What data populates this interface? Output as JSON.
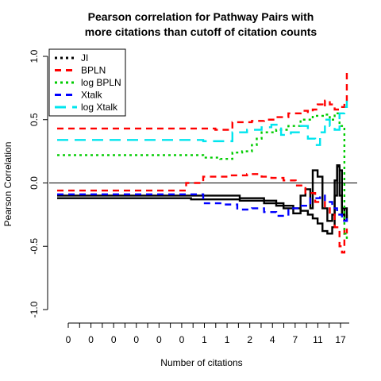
{
  "chart_data": {
    "type": "line",
    "title": [
      "Pearson correlation for Pathway Pairs with",
      "more citations than cutoff of citation counts"
    ],
    "xlabel": "Number of citations",
    "ylabel": "Pearson Correlation",
    "xlim": [
      0,
      120
    ],
    "ylim": [
      -1.0,
      1.0
    ],
    "x_tick_labels": [
      "0",
      "0",
      "0",
      "0",
      "0",
      "0",
      "1",
      "1",
      "2",
      "4",
      "7",
      "11",
      "17"
    ],
    "y_tick_labels": [
      "-1.0",
      "-0.5",
      "0.0",
      "0.5",
      "1.0"
    ],
    "y_tick_values": [
      -1.0,
      -0.5,
      0.0,
      0.5,
      1.0
    ],
    "reference_line": 0.0,
    "legend_position": "top-left",
    "series": [
      {
        "name": "JI",
        "color": "#000000",
        "dash": "dotted",
        "lines": [
          [
            [
              0,
              -0.1
            ],
            [
              50,
              -0.1
            ],
            [
              55,
              -0.1
            ],
            [
              65,
              -0.1
            ],
            [
              75,
              -0.12
            ],
            [
              85,
              -0.14
            ],
            [
              90,
              -0.16
            ],
            [
              93,
              -0.18
            ],
            [
              97,
              -0.2
            ],
            [
              100,
              -0.22
            ],
            [
              103,
              -0.25
            ],
            [
              105,
              -0.28
            ],
            [
              107,
              -0.32
            ],
            [
              109,
              -0.38
            ],
            [
              111,
              -0.4
            ],
            [
              113,
              -0.35
            ],
            [
              114,
              -0.1
            ],
            [
              115,
              0.14
            ],
            [
              116,
              0.1
            ],
            [
              117,
              -0.2
            ],
            [
              118,
              -0.3
            ],
            [
              119,
              -0.25
            ]
          ],
          [
            [
              0,
              -0.12
            ],
            [
              50,
              -0.12
            ],
            [
              55,
              -0.13
            ],
            [
              65,
              -0.13
            ],
            [
              75,
              -0.14
            ],
            [
              85,
              -0.16
            ],
            [
              90,
              -0.18
            ],
            [
              93,
              -0.2
            ],
            [
              97,
              -0.24
            ],
            [
              100,
              -0.1
            ],
            [
              102,
              -0.05
            ],
            [
              104,
              -0.2
            ],
            [
              105,
              0.1
            ],
            [
              107,
              0.05
            ],
            [
              109,
              -0.2
            ],
            [
              111,
              -0.3
            ],
            [
              113,
              -0.25
            ],
            [
              114,
              0.02
            ],
            [
              115,
              0.13
            ],
            [
              116,
              -0.1
            ],
            [
              117,
              -0.25
            ],
            [
              118,
              -0.2
            ],
            [
              119,
              -0.28
            ]
          ]
        ]
      },
      {
        "name": "BPLN",
        "color": "#ff0000",
        "dash": "dashed",
        "lines": [
          [
            [
              0,
              0.43
            ],
            [
              55,
              0.43
            ],
            [
              65,
              0.42
            ],
            [
              72,
              0.48
            ],
            [
              80,
              0.49
            ],
            [
              85,
              0.5
            ],
            [
              90,
              0.52
            ],
            [
              95,
              0.55
            ],
            [
              100,
              0.57
            ],
            [
              103,
              0.56
            ],
            [
              105,
              0.58
            ],
            [
              107,
              0.62
            ],
            [
              109,
              0.6
            ],
            [
              110,
              0.65
            ],
            [
              112,
              0.62
            ],
            [
              114,
              0.58
            ],
            [
              116,
              0.6
            ],
            [
              118,
              0.65
            ],
            [
              119,
              0.88
            ]
          ],
          [
            [
              0,
              -0.06
            ],
            [
              48,
              -0.06
            ],
            [
              52,
              -0.06
            ],
            [
              53,
              0.0
            ],
            [
              60,
              0.05
            ],
            [
              70,
              0.06
            ],
            [
              78,
              0.07
            ],
            [
              84,
              0.05
            ],
            [
              88,
              0.04
            ],
            [
              93,
              0.02
            ],
            [
              98,
              -0.02
            ],
            [
              102,
              -0.08
            ],
            [
              106,
              -0.15
            ],
            [
              110,
              -0.2
            ],
            [
              112,
              -0.25
            ],
            [
              114,
              -0.35
            ],
            [
              116,
              -0.5
            ],
            [
              117,
              -0.55
            ],
            [
              118,
              -0.35
            ],
            [
              119,
              -0.4
            ]
          ]
        ]
      },
      {
        "name": "log BPLN",
        "color": "#00cc00",
        "dash": "dotted",
        "lines": [
          [
            [
              0,
              0.22
            ],
            [
              55,
              0.22
            ],
            [
              60,
              0.2
            ],
            [
              67,
              0.19
            ],
            [
              72,
              0.24
            ],
            [
              76,
              0.25
            ],
            [
              80,
              0.3
            ],
            [
              82,
              0.35
            ],
            [
              84,
              0.4
            ],
            [
              90,
              0.42
            ],
            [
              95,
              0.45
            ],
            [
              100,
              0.5
            ],
            [
              105,
              0.53
            ],
            [
              110,
              0.54
            ],
            [
              112,
              0.5
            ],
            [
              114,
              0.55
            ],
            [
              116,
              0.45
            ],
            [
              118,
              -0.4
            ],
            [
              119,
              -0.45
            ]
          ]
        ]
      },
      {
        "name": "Xtalk",
        "color": "#0000ff",
        "dash": "dashed",
        "lines": [
          [
            [
              0,
              -0.09
            ],
            [
              55,
              -0.09
            ],
            [
              60,
              -0.16
            ],
            [
              68,
              -0.17
            ],
            [
              74,
              -0.21
            ],
            [
              80,
              -0.2
            ],
            [
              85,
              -0.23
            ],
            [
              90,
              -0.26
            ],
            [
              95,
              -0.2
            ],
            [
              100,
              -0.18
            ],
            [
              104,
              -0.12
            ],
            [
              108,
              -0.1
            ],
            [
              110,
              -0.15
            ],
            [
              113,
              -0.2
            ],
            [
              115,
              -0.25
            ],
            [
              117,
              -0.3
            ],
            [
              119,
              -0.25
            ]
          ]
        ]
      },
      {
        "name": "log Xtalk",
        "color": "#00e5ee",
        "dash": "longdash",
        "lines": [
          [
            [
              0,
              0.34
            ],
            [
              55,
              0.34
            ],
            [
              60,
              0.33
            ],
            [
              68,
              0.33
            ],
            [
              72,
              0.4
            ],
            [
              78,
              0.42
            ],
            [
              84,
              0.44
            ],
            [
              88,
              0.46
            ],
            [
              92,
              0.38
            ],
            [
              96,
              0.4
            ],
            [
              100,
              0.45
            ],
            [
              103,
              0.35
            ],
            [
              106,
              0.3
            ],
            [
              108,
              0.4
            ],
            [
              110,
              0.5
            ],
            [
              112,
              0.45
            ],
            [
              114,
              0.42
            ],
            [
              116,
              0.55
            ],
            [
              118,
              0.6
            ],
            [
              119,
              0.65
            ]
          ]
        ]
      }
    ]
  }
}
